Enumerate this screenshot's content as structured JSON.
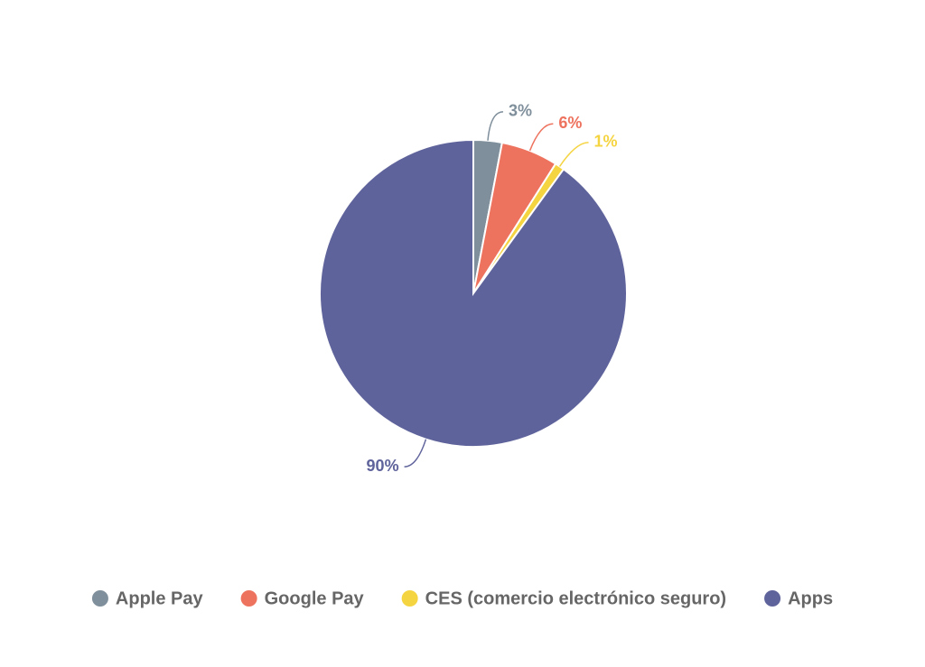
{
  "chart_data": {
    "type": "pie",
    "categories": [
      "Apple Pay",
      "Google Pay",
      "CES (comercio electrónico seguro)",
      "Apps"
    ],
    "values": [
      3,
      6,
      1,
      90
    ],
    "value_labels": [
      "3%",
      "6%",
      "1%",
      "90%"
    ],
    "colors": [
      "#7f8f9b",
      "#ee735f",
      "#f5d442",
      "#5f639b"
    ],
    "legend": "bottom"
  }
}
